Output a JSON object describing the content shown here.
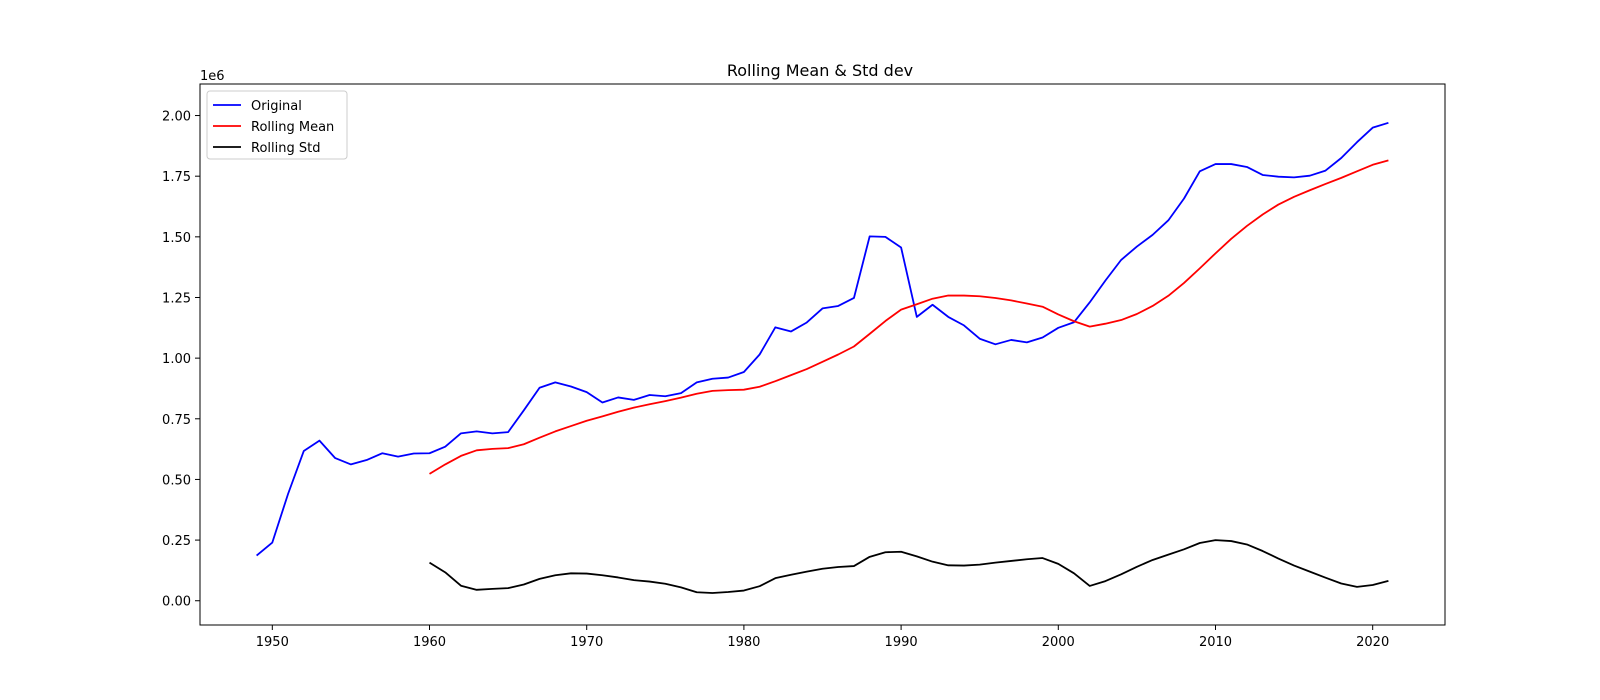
{
  "chart_data": {
    "type": "line",
    "title": "Rolling Mean & Std dev",
    "xlabel": "",
    "ylabel": "",
    "y_offset_label": "1e6",
    "xlim": [
      1945.4,
      2024.6
    ],
    "ylim": [
      -0.1,
      2.13
    ],
    "x_ticks": [
      1950,
      1960,
      1970,
      1980,
      1990,
      2000,
      2010,
      2020
    ],
    "x_tick_labels": [
      "1950",
      "1960",
      "1970",
      "1980",
      "1990",
      "2000",
      "2010",
      "2020"
    ],
    "y_ticks": [
      0.0,
      0.25,
      0.5,
      0.75,
      1.0,
      1.25,
      1.5,
      1.75,
      2.0
    ],
    "y_tick_labels": [
      "0.00",
      "0.25",
      "0.50",
      "0.75",
      "1.00",
      "1.25",
      "1.50",
      "1.75",
      "2.00"
    ],
    "grid": false,
    "legend_position": "top-left",
    "series": [
      {
        "name": "Original",
        "color": "#0000ff",
        "x": [
          1949,
          1950,
          1951,
          1952,
          1953,
          1954,
          1955,
          1956,
          1957,
          1958,
          1959,
          1960,
          1961,
          1962,
          1963,
          1964,
          1965,
          1966,
          1967,
          1968,
          1969,
          1970,
          1971,
          1972,
          1973,
          1974,
          1975,
          1976,
          1977,
          1978,
          1979,
          1980,
          1981,
          1982,
          1983,
          1984,
          1985,
          1986,
          1987,
          1988,
          1989,
          1990,
          1991,
          1992,
          1993,
          1994,
          1995,
          1996,
          1997,
          1998,
          1999,
          2000,
          2001,
          2002,
          2003,
          2004,
          2005,
          2006,
          2007,
          2008,
          2009,
          2010,
          2011,
          2012,
          2013,
          2014,
          2015,
          2016,
          2017,
          2018,
          2019,
          2020,
          2021
        ],
        "values": [
          0.186,
          0.24,
          0.44,
          0.617,
          0.66,
          0.588,
          0.562,
          0.58,
          0.608,
          0.594,
          0.607,
          0.608,
          0.635,
          0.69,
          0.698,
          0.69,
          0.695,
          0.785,
          0.878,
          0.9,
          0.883,
          0.86,
          0.817,
          0.838,
          0.828,
          0.848,
          0.843,
          0.856,
          0.9,
          0.915,
          0.92,
          0.943,
          1.015,
          1.127,
          1.11,
          1.147,
          1.205,
          1.215,
          1.248,
          1.502,
          1.5,
          1.456,
          1.17,
          1.22,
          1.17,
          1.135,
          1.08,
          1.057,
          1.075,
          1.065,
          1.085,
          1.125,
          1.148,
          1.23,
          1.32,
          1.405,
          1.46,
          1.508,
          1.568,
          1.658,
          1.77,
          1.8,
          1.8,
          1.788,
          1.755,
          1.748,
          1.745,
          1.752,
          1.773,
          1.825,
          1.89,
          1.95,
          1.97
        ]
      },
      {
        "name": "Rolling Mean",
        "color": "#ff0000",
        "x": [
          1960,
          1961,
          1962,
          1963,
          1964,
          1965,
          1966,
          1967,
          1968,
          1969,
          1970,
          1971,
          1972,
          1973,
          1974,
          1975,
          1976,
          1977,
          1978,
          1979,
          1980,
          1981,
          1982,
          1983,
          1984,
          1985,
          1986,
          1987,
          1988,
          1989,
          1990,
          1991,
          1992,
          1993,
          1994,
          1995,
          1996,
          1997,
          1998,
          1999,
          2000,
          2001,
          2002,
          2003,
          2004,
          2005,
          2006,
          2007,
          2008,
          2009,
          2010,
          2011,
          2012,
          2013,
          2014,
          2015,
          2016,
          2017,
          2018,
          2019,
          2020,
          2021
        ],
        "values": [
          0.523,
          0.562,
          0.597,
          0.62,
          0.626,
          0.629,
          0.645,
          0.672,
          0.698,
          0.72,
          0.742,
          0.76,
          0.779,
          0.796,
          0.81,
          0.823,
          0.837,
          0.853,
          0.865,
          0.868,
          0.87,
          0.882,
          0.905,
          0.93,
          0.955,
          0.985,
          1.015,
          1.048,
          1.1,
          1.153,
          1.2,
          1.222,
          1.245,
          1.258,
          1.258,
          1.255,
          1.248,
          1.238,
          1.225,
          1.212,
          1.18,
          1.152,
          1.13,
          1.142,
          1.157,
          1.182,
          1.215,
          1.257,
          1.31,
          1.37,
          1.432,
          1.492,
          1.545,
          1.592,
          1.633,
          1.665,
          1.692,
          1.718,
          1.743,
          1.77,
          1.797,
          1.815
        ]
      },
      {
        "name": "Rolling Std",
        "color": "#000000",
        "x": [
          1960,
          1961,
          1962,
          1963,
          1964,
          1965,
          1966,
          1967,
          1968,
          1969,
          1970,
          1971,
          1972,
          1973,
          1974,
          1975,
          1976,
          1977,
          1978,
          1979,
          1980,
          1981,
          1982,
          1983,
          1984,
          1985,
          1986,
          1987,
          1988,
          1989,
          1990,
          1991,
          1992,
          1993,
          1994,
          1995,
          1996,
          1997,
          1998,
          1999,
          2000,
          2001,
          2002,
          2003,
          2004,
          2005,
          2006,
          2007,
          2008,
          2009,
          2010,
          2011,
          2012,
          2013,
          2014,
          2015,
          2016,
          2017,
          2018,
          2019,
          2020,
          2021
        ],
        "values": [
          0.157,
          0.117,
          0.062,
          0.045,
          0.049,
          0.052,
          0.067,
          0.09,
          0.105,
          0.113,
          0.112,
          0.105,
          0.096,
          0.085,
          0.079,
          0.07,
          0.055,
          0.035,
          0.032,
          0.036,
          0.042,
          0.06,
          0.093,
          0.107,
          0.12,
          0.132,
          0.139,
          0.143,
          0.181,
          0.2,
          0.202,
          0.183,
          0.161,
          0.146,
          0.145,
          0.149,
          0.157,
          0.164,
          0.171,
          0.176,
          0.152,
          0.113,
          0.061,
          0.081,
          0.109,
          0.14,
          0.168,
          0.19,
          0.212,
          0.238,
          0.25,
          0.246,
          0.232,
          0.205,
          0.174,
          0.145,
          0.12,
          0.095,
          0.071,
          0.057,
          0.065,
          0.082
        ]
      }
    ]
  }
}
